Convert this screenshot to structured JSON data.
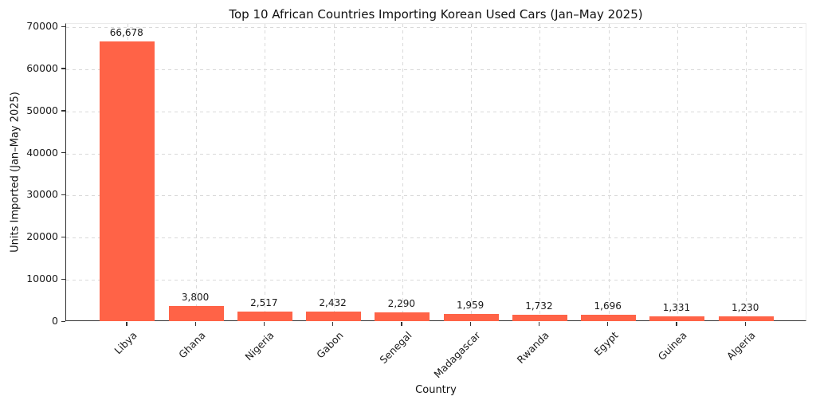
{
  "chart_data": {
    "type": "bar",
    "title": "Top 10 African Countries Importing Korean Used Cars (Jan–May 2025)",
    "xlabel": "Country",
    "ylabel": "Units Imported (Jan–May 2025)",
    "categories": [
      "Libya",
      "Ghana",
      "Nigeria",
      "Gabon",
      "Senegal",
      "Madagascar",
      "Rwanda",
      "Egypt",
      "Guinea",
      "Algeria"
    ],
    "values": [
      66678,
      3800,
      2517,
      2432,
      2290,
      1959,
      1732,
      1696,
      1331,
      1230
    ],
    "value_labels": [
      "66,678",
      "3,800",
      "2,517",
      "2,432",
      "2,290",
      "1,959",
      "1,732",
      "1,696",
      "1,331",
      "1,230"
    ],
    "ytick_values": [
      0,
      10000,
      20000,
      30000,
      40000,
      50000,
      60000,
      70000
    ],
    "ytick_labels": [
      "0",
      "10000",
      "20000",
      "30000",
      "40000",
      "50000",
      "60000",
      "70000"
    ],
    "ylim": [
      0,
      70000
    ],
    "bar_color": "#ff6347",
    "grid": "dashed",
    "legend": "none",
    "xtick_rotation": 45
  }
}
